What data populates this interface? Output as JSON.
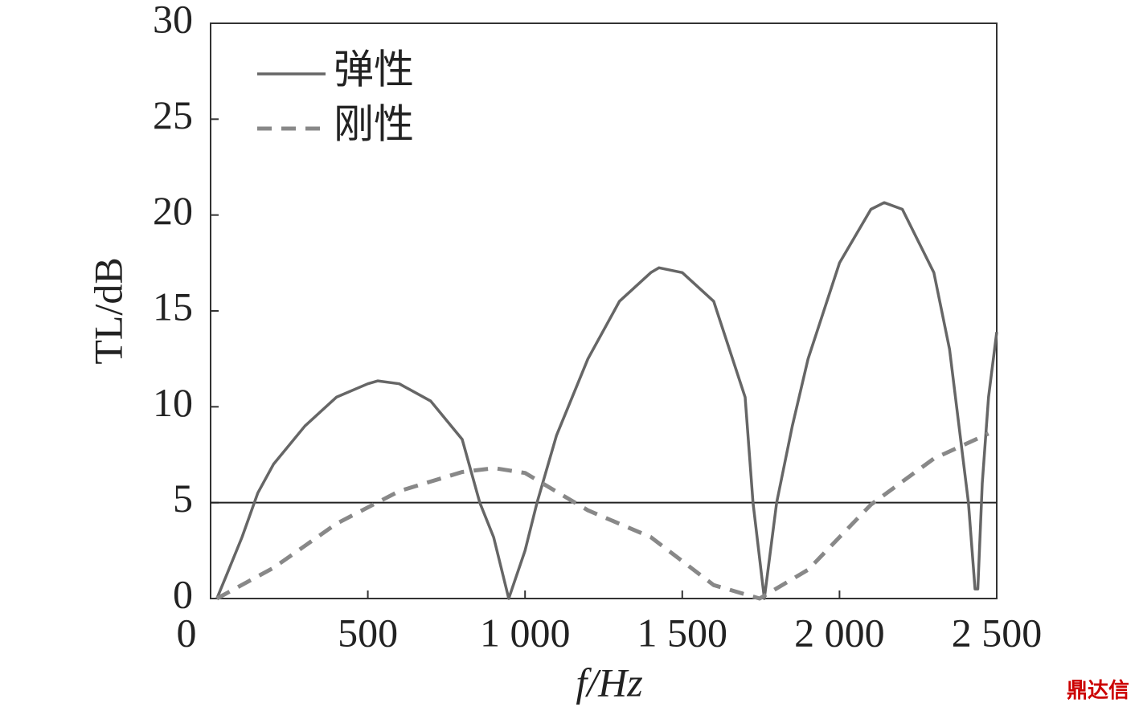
{
  "chart_data": {
    "type": "line",
    "x_label": "f/Hz",
    "y_label": "TL/dB",
    "xlim": [
      0,
      2500
    ],
    "xticks": [
      0,
      500,
      {
        "value": 1000,
        "label": "1 000"
      },
      {
        "value": 1500,
        "label": "1 500"
      },
      {
        "value": 2000,
        "label": "2 000"
      },
      {
        "value": 2500,
        "label": "2 500"
      }
    ],
    "ylim": [
      0,
      30
    ],
    "yticks": [
      0,
      5,
      10,
      15,
      20,
      25,
      30
    ],
    "reference_line": 5,
    "legend": "upper left",
    "watermark": "鼎达信",
    "series": [
      {
        "name": "弹性",
        "color": "#666666",
        "dash": "solid",
        "x": [
          20,
          50,
          100,
          150,
          200,
          300,
          400,
          500,
          532,
          600,
          700,
          800,
          856,
          900,
          948,
          1000,
          1038,
          1100,
          1200,
          1300,
          1400,
          1426,
          1500,
          1600,
          1700,
          1725,
          1761,
          1800,
          1850,
          1900,
          2000,
          2100,
          2142,
          2200,
          2300,
          2350,
          2410,
          2431,
          2440,
          2454,
          2474,
          2500
        ],
        "values": [
          0,
          1.2,
          3.2,
          5.5,
          7.0,
          9.0,
          10.5,
          11.2,
          11.35,
          11.2,
          10.3,
          8.3,
          5,
          3.2,
          0,
          2.5,
          5,
          8.5,
          12.5,
          15.5,
          17.0,
          17.25,
          17.0,
          15.5,
          10.5,
          5,
          0,
          5,
          9,
          12.5,
          17.5,
          20.3,
          20.65,
          20.3,
          17,
          13,
          5,
          0.5,
          0.5,
          6,
          10.5,
          13.9
        ]
      },
      {
        "name": "刚性",
        "color": "#888888",
        "dash": "dashed",
        "x": [
          20,
          200,
          400,
          600,
          800,
          902,
          1000,
          1200,
          1400,
          1600,
          1746,
          1900,
          2100,
          2300,
          2474
        ],
        "values": [
          0,
          1.6,
          3.9,
          5.6,
          6.6,
          6.8,
          6.55,
          4.6,
          3.2,
          0.7,
          0,
          1.5,
          4.9,
          7.3,
          8.6
        ]
      }
    ]
  }
}
